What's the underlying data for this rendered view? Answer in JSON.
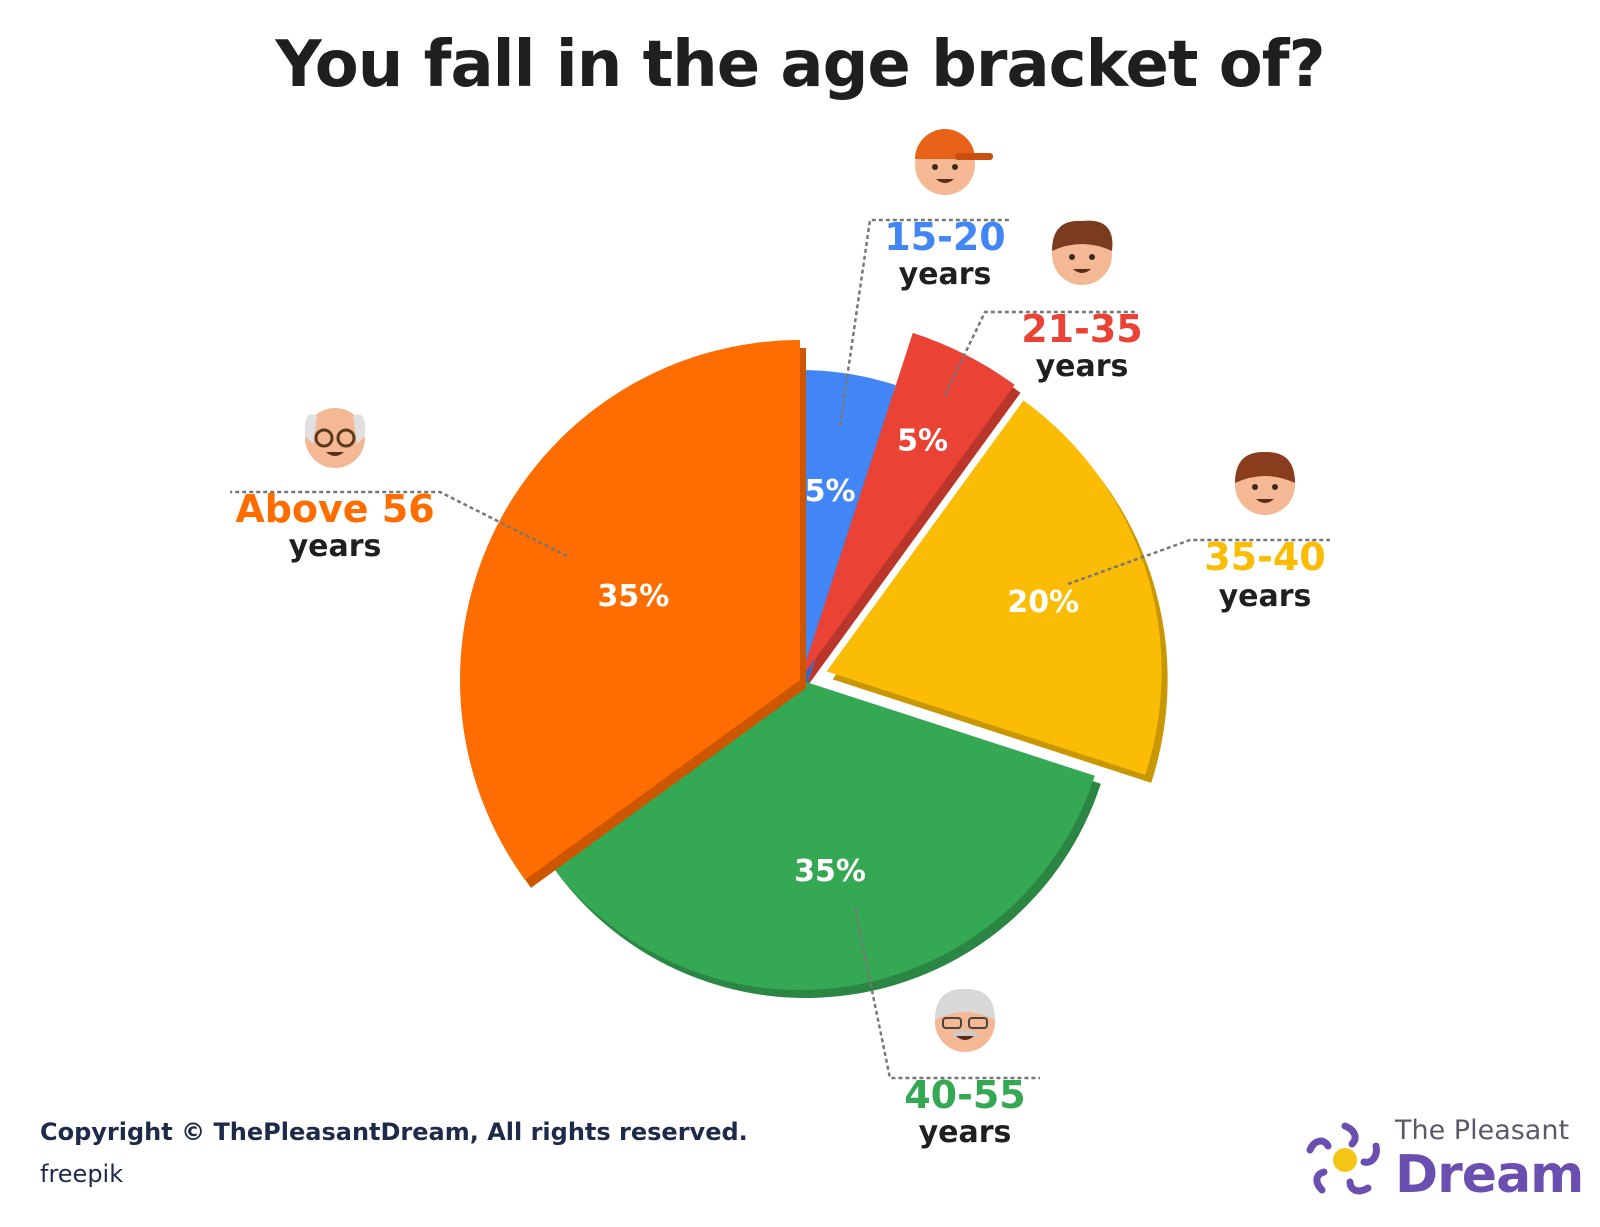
{
  "title": "You fall in the age bracket of?",
  "footer": {
    "copyright": "Copyright © ThePleasantDream, All rights reserved.",
    "credit": "freepik",
    "brand_line1": "The Pleasant",
    "brand_line2": "Dream"
  },
  "colors": {
    "15-20": "#4285f4",
    "21-35": "#ea4335",
    "35-40": "#fbbc05",
    "40-55": "#34a853",
    "Above 56": "#ff6d00"
  },
  "chart_data": {
    "type": "pie",
    "title": "You fall in the age bracket of?",
    "slices": [
      {
        "label": "15-20",
        "unit": "years",
        "value": 5,
        "value_label": "5%",
        "color": "#4285f4",
        "icon": "teen-with-cap-face-icon"
      },
      {
        "label": "21-35",
        "unit": "years",
        "value": 5,
        "value_label": "5%",
        "color": "#ea4335",
        "icon": "young-man-face-icon"
      },
      {
        "label": "35-40",
        "unit": "years",
        "value": 20,
        "value_label": "20%",
        "color": "#fbbc05",
        "icon": "man-face-icon"
      },
      {
        "label": "40-55",
        "unit": "years",
        "value": 35,
        "value_label": "35%",
        "color": "#34a853",
        "icon": "man-with-glasses-mustache-face-icon"
      },
      {
        "label": "Above 56",
        "unit": "years",
        "value": 35,
        "value_label": "35%",
        "color": "#ff6d00",
        "icon": "elderly-man-with-glasses-face-icon"
      }
    ]
  }
}
